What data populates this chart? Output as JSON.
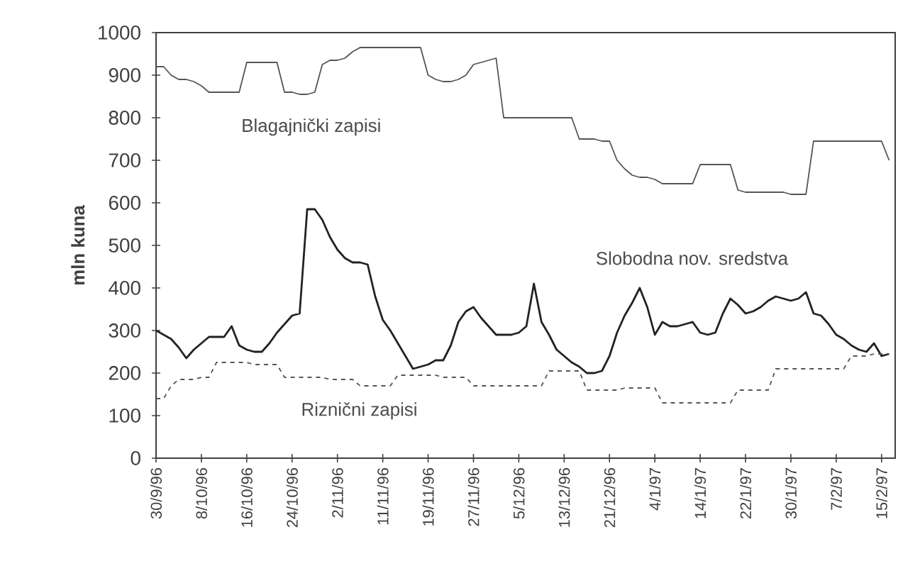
{
  "chart_data": {
    "type": "line",
    "ylabel": "mln kuna",
    "ylim": [
      0,
      1000
    ],
    "yticks": [
      0,
      100,
      200,
      300,
      400,
      500,
      600,
      700,
      800,
      900,
      1000
    ],
    "categories": [
      "30/9/96",
      null,
      null,
      null,
      null,
      null,
      "8/10/96",
      null,
      null,
      null,
      null,
      null,
      "16/10/96",
      null,
      null,
      null,
      null,
      null,
      "24/10/96",
      null,
      null,
      null,
      null,
      null,
      "2/11/96",
      null,
      null,
      null,
      null,
      null,
      "11/11/96",
      null,
      null,
      null,
      null,
      null,
      "19/11/96",
      null,
      null,
      null,
      null,
      null,
      "27/11/96",
      null,
      null,
      null,
      null,
      null,
      "5/12/96",
      null,
      null,
      null,
      null,
      null,
      "13/12/96",
      null,
      null,
      null,
      null,
      null,
      "21/12/96",
      null,
      null,
      null,
      null,
      null,
      "4/1/97",
      null,
      null,
      null,
      null,
      null,
      "14/1/97",
      null,
      null,
      null,
      null,
      null,
      "22/1/97",
      null,
      null,
      null,
      null,
      null,
      "30/1/97",
      null,
      null,
      null,
      null,
      null,
      "7/2/97",
      null,
      null,
      null,
      null,
      null,
      "15/2/97",
      null
    ],
    "series": [
      {
        "name": "Blagajnički zapisi",
        "color": "#555555",
        "line_style": "solid",
        "values": [
          920,
          920,
          900,
          890,
          890,
          885,
          875,
          860,
          860,
          860,
          860,
          860,
          930,
          930,
          930,
          930,
          930,
          860,
          860,
          855,
          855,
          860,
          925,
          935,
          935,
          940,
          955,
          965,
          965,
          965,
          965,
          965,
          965,
          965,
          965,
          965,
          900,
          890,
          885,
          885,
          890,
          900,
          925,
          930,
          935,
          940,
          800,
          800,
          800,
          800,
          800,
          800,
          800,
          800,
          800,
          800,
          750,
          750,
          750,
          745,
          745,
          700,
          680,
          665,
          660,
          660,
          655,
          645,
          645,
          645,
          645,
          645,
          690,
          690,
          690,
          690,
          690,
          630,
          625,
          625,
          625,
          625,
          625,
          625,
          620,
          620,
          620,
          745,
          745,
          745,
          745,
          745,
          745,
          745,
          745,
          745,
          745,
          700
        ]
      },
      {
        "name": "Slobodna nov. sredstva",
        "color": "#222222",
        "line_style": "solid",
        "values": [
          300,
          290,
          280,
          260,
          235,
          255,
          270,
          285,
          285,
          285,
          310,
          265,
          255,
          250,
          250,
          270,
          295,
          315,
          335,
          340,
          585,
          585,
          560,
          520,
          490,
          470,
          460,
          460,
          455,
          380,
          325,
          300,
          270,
          240,
          210,
          215,
          220,
          230,
          230,
          265,
          320,
          345,
          355,
          330,
          310,
          290,
          290,
          290,
          295,
          310,
          410,
          320,
          290,
          255,
          240,
          225,
          215,
          200,
          200,
          205,
          240,
          295,
          335,
          365,
          400,
          355,
          290,
          320,
          310,
          310,
          315,
          320,
          295,
          290,
          295,
          340,
          375,
          360,
          340,
          345,
          355,
          370,
          380,
          375,
          370,
          375,
          390,
          340,
          335,
          315,
          290,
          280,
          265,
          255,
          250,
          270,
          240,
          245
        ]
      },
      {
        "name": "Riznični zapisi",
        "color": "#555555",
        "line_style": "dashed",
        "values": [
          140,
          140,
          170,
          185,
          185,
          185,
          190,
          190,
          225,
          225,
          225,
          225,
          225,
          220,
          220,
          220,
          220,
          190,
          190,
          190,
          190,
          190,
          190,
          185,
          185,
          185,
          185,
          170,
          170,
          170,
          170,
          170,
          195,
          195,
          195,
          195,
          195,
          195,
          190,
          190,
          190,
          190,
          170,
          170,
          170,
          170,
          170,
          170,
          170,
          170,
          170,
          170,
          205,
          205,
          205,
          205,
          205,
          160,
          160,
          160,
          160,
          160,
          165,
          165,
          165,
          165,
          165,
          130,
          130,
          130,
          130,
          130,
          130,
          130,
          130,
          130,
          130,
          160,
          160,
          160,
          160,
          160,
          210,
          210,
          210,
          210,
          210,
          210,
          210,
          210,
          210,
          210,
          240,
          240,
          240,
          245,
          245,
          245
        ]
      }
    ]
  }
}
